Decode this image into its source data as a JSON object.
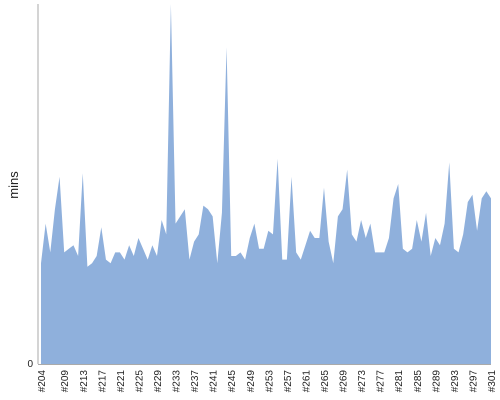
{
  "chart_data": {
    "type": "area",
    "ylabel": "mins",
    "xlabel": "",
    "title": "",
    "ylim": [
      0,
      100
    ],
    "y_tick_labels": [
      "0"
    ],
    "grid": false,
    "legend": "none",
    "fill_color": "#8fb0dc",
    "axis_color": "#aaaaaa",
    "x_tick_labels": [
      "#204",
      "#209",
      "#213",
      "#217",
      "#221",
      "#225",
      "#229",
      "#233",
      "#237",
      "#241",
      "#245",
      "#249",
      "#253",
      "#257",
      "#261",
      "#265",
      "#269",
      "#273",
      "#277",
      "#281",
      "#285",
      "#289",
      "#293",
      "#297",
      "#301"
    ],
    "x": [
      204,
      205,
      206,
      207,
      208,
      209,
      210,
      211,
      212,
      213,
      214,
      215,
      216,
      217,
      218,
      219,
      220,
      221,
      222,
      223,
      224,
      225,
      226,
      227,
      228,
      229,
      230,
      231,
      232,
      233,
      234,
      235,
      236,
      237,
      238,
      239,
      240,
      241,
      242,
      243,
      244,
      245,
      246,
      247,
      248,
      249,
      250,
      251,
      252,
      253,
      254,
      255,
      256,
      257,
      258,
      259,
      260,
      261,
      262,
      263,
      264,
      265,
      266,
      267,
      268,
      269,
      270,
      271,
      272,
      273,
      274,
      275,
      276,
      277,
      278,
      279,
      280,
      281,
      282,
      283,
      284,
      285,
      286,
      287,
      288,
      289,
      290,
      291,
      292,
      293,
      294,
      295,
      296,
      297,
      298,
      299,
      300,
      301
    ],
    "series": [
      {
        "values": [
          28,
          39,
          31,
          43,
          52,
          31,
          32,
          33,
          30,
          53,
          27,
          28,
          30,
          38,
          29,
          28,
          31,
          31,
          29,
          33,
          30,
          35,
          32,
          29,
          33,
          30,
          40,
          36,
          100,
          39,
          41,
          43,
          29,
          34,
          36,
          44,
          43,
          41,
          28,
          42,
          88,
          30,
          30,
          31,
          29,
          35,
          39,
          32,
          32,
          37,
          36,
          57,
          29,
          29,
          52,
          31,
          29,
          33,
          37,
          35,
          35,
          49,
          34,
          28,
          41,
          43,
          54,
          36,
          34,
          40,
          35,
          39,
          31,
          31,
          31,
          35,
          46,
          50,
          32,
          31,
          32,
          40,
          34,
          42,
          30,
          35,
          33,
          39,
          56,
          32,
          31,
          36,
          45,
          47,
          37,
          46,
          48,
          46
        ]
      }
    ]
  }
}
